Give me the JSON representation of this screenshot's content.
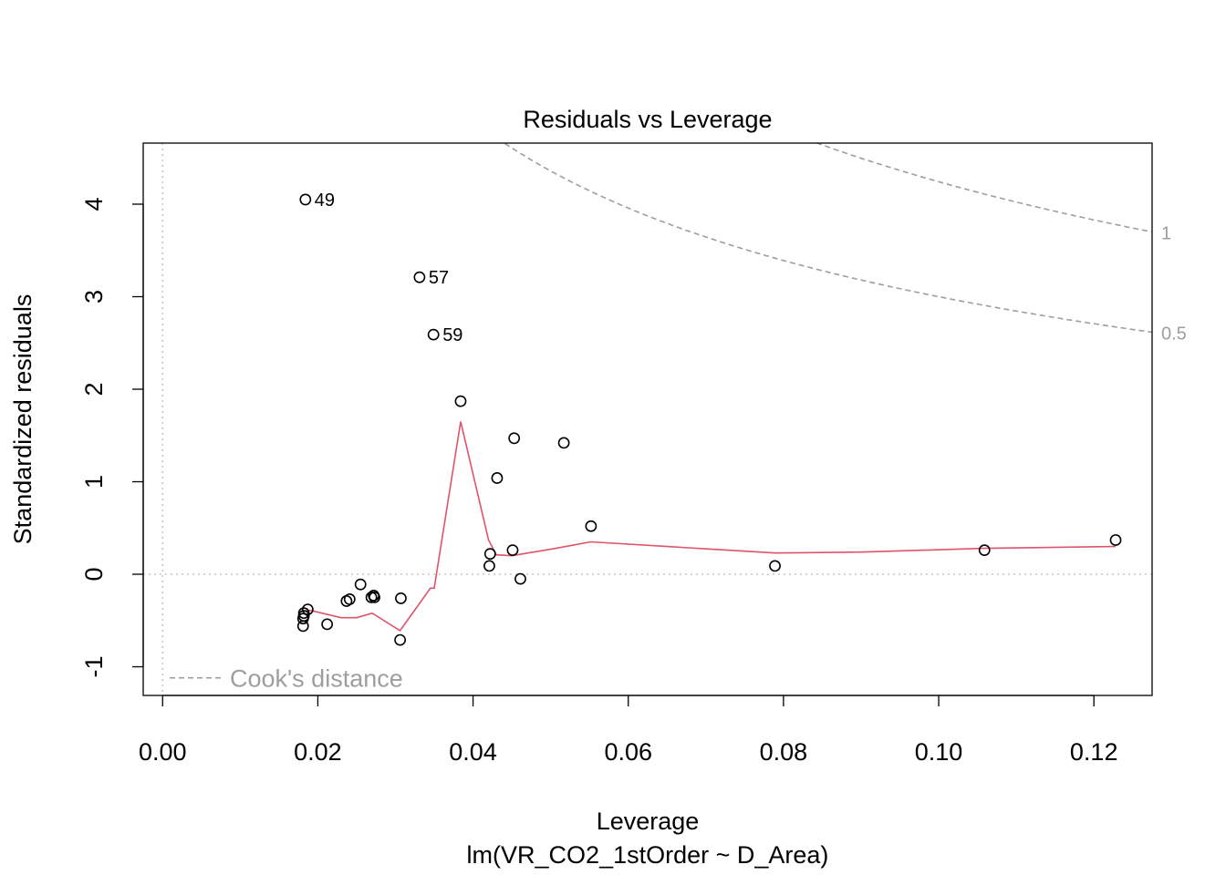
{
  "chart_data": {
    "type": "scatter",
    "title": "Residuals vs Leverage",
    "xlabel": "Leverage",
    "subtitle": "lm(VR_CO2_1stOrder ~ D_Area)",
    "ylabel": "Standardized residuals",
    "xlim": [
      -0.0025,
      0.1275
    ],
    "ylim": [
      -1.31,
      4.66
    ],
    "x_ticks": [
      0.0,
      0.02,
      0.04,
      0.06,
      0.08,
      0.1,
      0.12
    ],
    "x_tick_labels": [
      "0.00",
      "0.02",
      "0.04",
      "0.06",
      "0.08",
      "0.10",
      "0.12"
    ],
    "y_ticks": [
      -1,
      0,
      1,
      2,
      3,
      4
    ],
    "y_tick_labels": [
      "-1",
      "0",
      "1",
      "2",
      "3",
      "4"
    ],
    "reference_lines": {
      "x": 0,
      "y": 0
    },
    "points": [
      {
        "x": 0.0184,
        "y": 4.05,
        "label": "49"
      },
      {
        "x": 0.0331,
        "y": 3.21,
        "label": "57"
      },
      {
        "x": 0.0349,
        "y": 2.59,
        "label": "59"
      },
      {
        "x": 0.0384,
        "y": 1.87
      },
      {
        "x": 0.0453,
        "y": 1.47
      },
      {
        "x": 0.0517,
        "y": 1.42
      },
      {
        "x": 0.0431,
        "y": 1.04
      },
      {
        "x": 0.0552,
        "y": 0.52
      },
      {
        "x": 0.0422,
        "y": 0.22
      },
      {
        "x": 0.0451,
        "y": 0.26
      },
      {
        "x": 0.0421,
        "y": 0.09
      },
      {
        "x": 0.0461,
        "y": -0.05
      },
      {
        "x": 0.0789,
        "y": 0.09
      },
      {
        "x": 0.1059,
        "y": 0.26
      },
      {
        "x": 0.1228,
        "y": 0.37
      },
      {
        "x": 0.0255,
        "y": -0.11
      },
      {
        "x": 0.0307,
        "y": -0.26
      },
      {
        "x": 0.0272,
        "y": -0.23
      },
      {
        "x": 0.0269,
        "y": -0.25
      },
      {
        "x": 0.0273,
        "y": -0.25
      },
      {
        "x": 0.0241,
        "y": -0.27
      },
      {
        "x": 0.0237,
        "y": -0.29
      },
      {
        "x": 0.0187,
        "y": -0.38
      },
      {
        "x": 0.0182,
        "y": -0.42
      },
      {
        "x": 0.0182,
        "y": -0.45
      },
      {
        "x": 0.0181,
        "y": -0.48
      },
      {
        "x": 0.0181,
        "y": -0.56
      },
      {
        "x": 0.0212,
        "y": -0.54
      },
      {
        "x": 0.0306,
        "y": -0.71
      }
    ],
    "smooth_line": {
      "x": [
        0.0181,
        0.019,
        0.023,
        0.025,
        0.027,
        0.0306,
        0.0345,
        0.035,
        0.0384,
        0.042,
        0.043,
        0.045,
        0.05,
        0.0552,
        0.065,
        0.0789,
        0.09,
        0.1059,
        0.1228
      ],
      "y": [
        -0.4,
        -0.39,
        -0.47,
        -0.47,
        -0.42,
        -0.61,
        -0.15,
        -0.15,
        1.65,
        0.37,
        0.21,
        0.2,
        0.27,
        0.35,
        0.3,
        0.23,
        0.24,
        0.28,
        0.3
      ]
    },
    "cooks_distance": {
      "legend": "Cook's distance",
      "levels": [
        {
          "level": 1,
          "label": "1"
        },
        {
          "level": 0.5,
          "label": "0.5"
        }
      ]
    },
    "colors": {
      "points": "#000000",
      "smooth": "#DF536B",
      "cooks": "#9E9E9E",
      "reference": "#BEBEBE",
      "frame": "#000000"
    }
  }
}
